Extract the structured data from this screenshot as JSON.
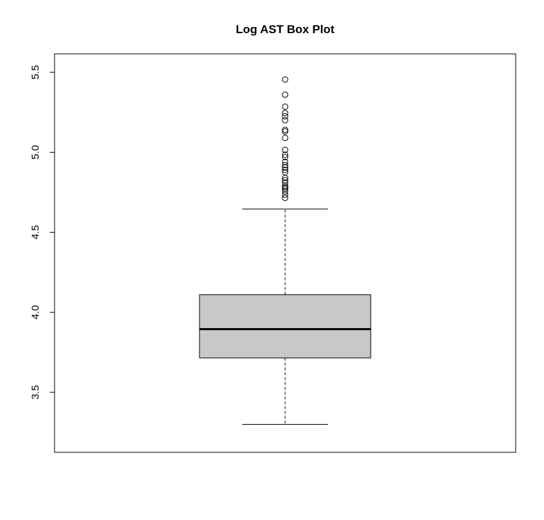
{
  "chart_data": {
    "type": "box",
    "title": "Log AST Box Plot",
    "xlabel": "",
    "ylabel": "",
    "ylim": [
      3.22,
      5.52
    ],
    "yticks": [
      3.5,
      4.0,
      4.5,
      5.0,
      5.5
    ],
    "ytick_labels": [
      "3.5",
      "4.0",
      "4.5",
      "5.0",
      "5.5"
    ],
    "grid": false,
    "colors": {
      "box_fill": "#c8c8c8",
      "stroke": "#000000",
      "background": "#ffffff"
    },
    "box": {
      "whisker_low": 3.3,
      "q1": 3.715,
      "median": 3.895,
      "q3": 4.11,
      "whisker_high": 4.645
    },
    "outliers": [
      4.715,
      4.735,
      4.755,
      4.77,
      4.78,
      4.79,
      4.81,
      4.825,
      4.84,
      4.875,
      4.89,
      4.905,
      4.92,
      4.94,
      4.97,
      4.985,
      5.015,
      5.09,
      5.13,
      5.14,
      5.2,
      5.225,
      5.245,
      5.285,
      5.36,
      5.455
    ]
  }
}
